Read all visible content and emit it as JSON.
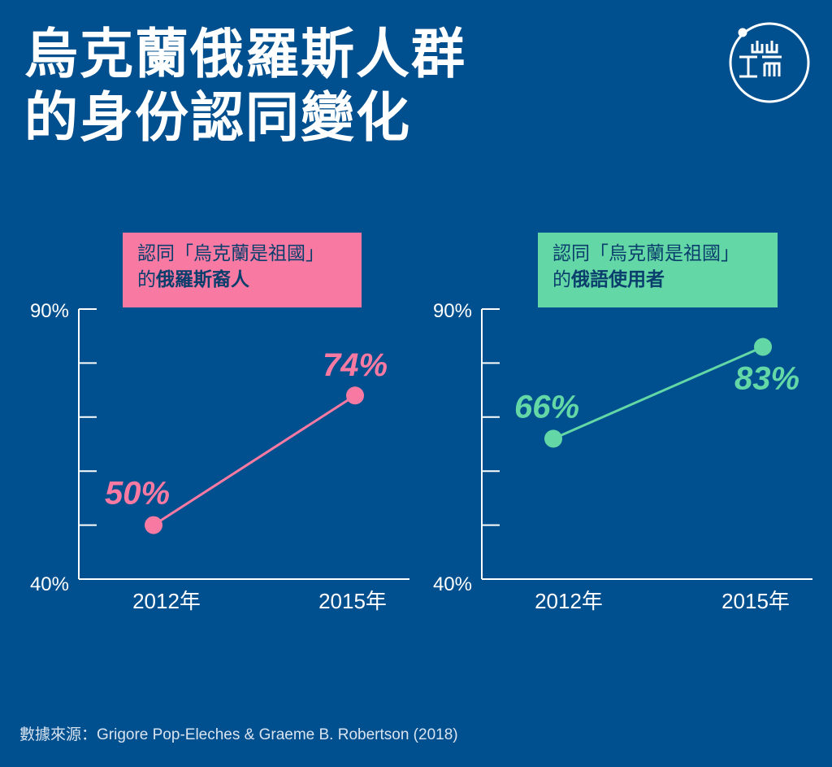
{
  "title_line1": "烏克蘭俄羅斯人群",
  "title_line2": "的身份認同變化",
  "source": "數據來源：Grigore Pop-Eleches & Graeme B. Robertson (2018)",
  "colors": {
    "background": "#004f8e",
    "pink": "#f87aa3",
    "green": "#63d8a6",
    "axis": "#ffffff"
  },
  "chart_data": [
    {
      "type": "line",
      "legend_line1": "認同「烏克蘭是祖國」",
      "legend_prefix": "的",
      "legend_bold": "俄羅斯裔人",
      "categories": [
        "2012年",
        "2015年"
      ],
      "values": [
        50,
        74
      ],
      "value_labels": [
        "50%",
        "74%"
      ],
      "ylim": [
        40,
        90
      ],
      "ytick_labels": [
        "90%",
        "40%"
      ],
      "color": "#f87aa3"
    },
    {
      "type": "line",
      "legend_line1": "認同「烏克蘭是祖國」",
      "legend_prefix": "的",
      "legend_bold": "俄語使用者",
      "categories": [
        "2012年",
        "2015年"
      ],
      "values": [
        66,
        83
      ],
      "value_labels": [
        "66%",
        "83%"
      ],
      "ylim": [
        40,
        90
      ],
      "ytick_labels": [
        "90%",
        "40%"
      ],
      "color": "#63d8a6"
    }
  ]
}
